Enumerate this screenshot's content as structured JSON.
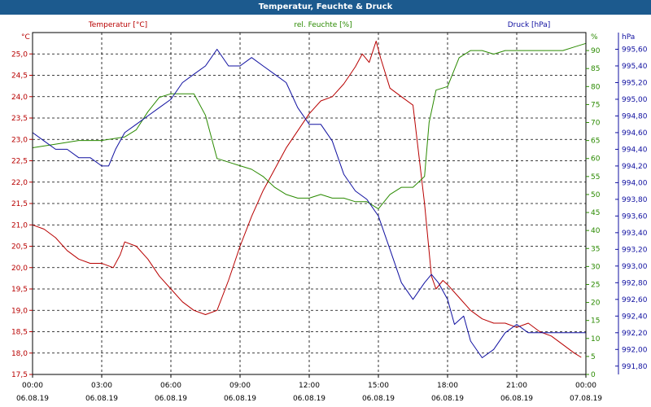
{
  "window": {
    "title": "Temperatur, Feuchte & Druck"
  },
  "colors": {
    "temp": "#b80000",
    "hum": "#2a8a00",
    "press": "#1010a0",
    "title_bg": "#1c5a8e"
  },
  "chart_data": {
    "type": "line",
    "title": "Temperatur, Feuchte & Druck",
    "x_ticks": [
      {
        "time": "00:00",
        "date": "06.08.19"
      },
      {
        "time": "03:00",
        "date": "06.08.19"
      },
      {
        "time": "06:00",
        "date": "06.08.19"
      },
      {
        "time": "09:00",
        "date": "06.08.19"
      },
      {
        "time": "12:00",
        "date": "06.08.19"
      },
      {
        "time": "15:00",
        "date": "06.08.19"
      },
      {
        "time": "18:00",
        "date": "06.08.19"
      },
      {
        "time": "21:00",
        "date": "06.08.19"
      },
      {
        "time": "00:00",
        "date": "07.08.19"
      }
    ],
    "xlim": [
      0,
      24
    ],
    "axes": {
      "temp": {
        "label": "Temperatur [°C]",
        "unit": "°C",
        "range": [
          17.5,
          25.5
        ],
        "ticks": [
          "17,5",
          "18,0",
          "18,5",
          "19,0",
          "19,5",
          "20,0",
          "20,5",
          "21,0",
          "21,5",
          "22,0",
          "22,5",
          "23,0",
          "23,5",
          "24,0",
          "24,5",
          "25,0"
        ]
      },
      "hum": {
        "label": "rel. Feuchte [%]",
        "unit": "%",
        "range": [
          0,
          95
        ],
        "ticks": [
          "0",
          "5",
          "10",
          "15",
          "20",
          "25",
          "30",
          "35",
          "40",
          "45",
          "50",
          "55",
          "60",
          "65",
          "70",
          "75",
          "80",
          "85",
          "90"
        ]
      },
      "press": {
        "label": "Druck [hPa]",
        "unit": "hPa",
        "range": [
          991.7,
          995.8
        ],
        "ticks": [
          "991,80",
          "992,00",
          "992,20",
          "992,40",
          "992,60",
          "992,80",
          "993,00",
          "993,20",
          "993,40",
          "993,60",
          "993,80",
          "994,00",
          "994,20",
          "994,40",
          "994,60",
          "994,80",
          "995,00",
          "995,20",
          "995,40",
          "995,60"
        ]
      }
    },
    "series": [
      {
        "name": "Temperatur [°C]",
        "axis": "temp",
        "color": "#b80000",
        "x": [
          0,
          0.5,
          1,
          1.5,
          2,
          2.5,
          3,
          3.5,
          3.8,
          4,
          4.5,
          5,
          5.5,
          6,
          6.5,
          7,
          7.5,
          8,
          8.5,
          9,
          9.5,
          10,
          10.5,
          11,
          11.5,
          12,
          12.5,
          13,
          13.5,
          14,
          14.3,
          14.6,
          14.9,
          15.1,
          15.5,
          16,
          16.5,
          17,
          17.3,
          17.5,
          17.8,
          18,
          18.5,
          19,
          19.5,
          20,
          20.5,
          21,
          21.5,
          22,
          22.5,
          23,
          23.5,
          23.8
        ],
        "values": [
          21.0,
          20.9,
          20.7,
          20.4,
          20.2,
          20.1,
          20.1,
          20.0,
          20.3,
          20.6,
          20.5,
          20.2,
          19.8,
          19.5,
          19.2,
          19.0,
          18.9,
          19.0,
          19.7,
          20.5,
          21.2,
          21.8,
          22.3,
          22.8,
          23.2,
          23.6,
          23.9,
          24.0,
          24.3,
          24.7,
          25.0,
          24.8,
          25.3,
          24.9,
          24.2,
          24.0,
          23.8,
          21.5,
          19.8,
          19.5,
          19.7,
          19.6,
          19.3,
          19.0,
          18.8,
          18.7,
          18.7,
          18.6,
          18.7,
          18.5,
          18.4,
          18.2,
          18.0,
          17.9
        ]
      },
      {
        "name": "rel. Feuchte [%]",
        "axis": "hum",
        "color": "#2a8a00",
        "x": [
          0,
          1,
          2,
          3,
          4,
          4.5,
          5,
          5.5,
          6,
          6.5,
          7,
          7.5,
          8,
          8.5,
          9,
          9.5,
          10,
          10.5,
          11,
          11.5,
          12,
          12.5,
          13,
          13.5,
          14,
          14.5,
          15,
          15.5,
          16,
          16.5,
          17,
          17.2,
          17.5,
          18,
          18.5,
          19,
          19.5,
          20,
          20.5,
          21,
          21.5,
          22,
          22.5,
          23,
          23.5,
          24
        ],
        "values": [
          63,
          64,
          65,
          65,
          66,
          68,
          73,
          77,
          78,
          78,
          78,
          72,
          60,
          59,
          58,
          57,
          55,
          52,
          50,
          49,
          49,
          50,
          49,
          49,
          48,
          48,
          46,
          50,
          52,
          52,
          55,
          70,
          79,
          80,
          88,
          90,
          90,
          89,
          90,
          90,
          90,
          90,
          90,
          90,
          91,
          92
        ]
      },
      {
        "name": "Druck [hPa]",
        "axis": "press",
        "color": "#1010a0",
        "x": [
          0,
          0.5,
          1,
          1.5,
          2,
          2.5,
          3,
          3.3,
          3.6,
          4,
          4.5,
          5,
          5.5,
          6,
          6.5,
          7,
          7.5,
          8,
          8.5,
          9,
          9.5,
          10,
          10.5,
          11,
          11.5,
          12,
          12.5,
          13,
          13.5,
          14,
          14.5,
          15,
          15.5,
          16,
          16.5,
          17,
          17.3,
          17.6,
          18,
          18.3,
          18.7,
          19,
          19.5,
          20,
          20.5,
          21,
          21.5,
          22,
          22.5,
          23,
          23.5,
          24
        ],
        "values": [
          994.6,
          994.5,
          994.4,
          994.4,
          994.3,
          994.3,
          994.2,
          994.2,
          994.4,
          994.6,
          994.7,
          994.8,
          994.9,
          995.0,
          995.2,
          995.3,
          995.4,
          995.6,
          995.4,
          995.4,
          995.5,
          995.4,
          995.3,
          995.2,
          994.9,
          994.7,
          994.7,
          994.5,
          994.1,
          993.9,
          993.8,
          993.6,
          993.2,
          992.8,
          992.6,
          992.8,
          992.9,
          992.8,
          992.6,
          992.3,
          992.4,
          992.1,
          991.9,
          992.0,
          992.2,
          992.3,
          992.2,
          992.2,
          992.2,
          992.2,
          992.2,
          992.2
        ]
      }
    ]
  }
}
